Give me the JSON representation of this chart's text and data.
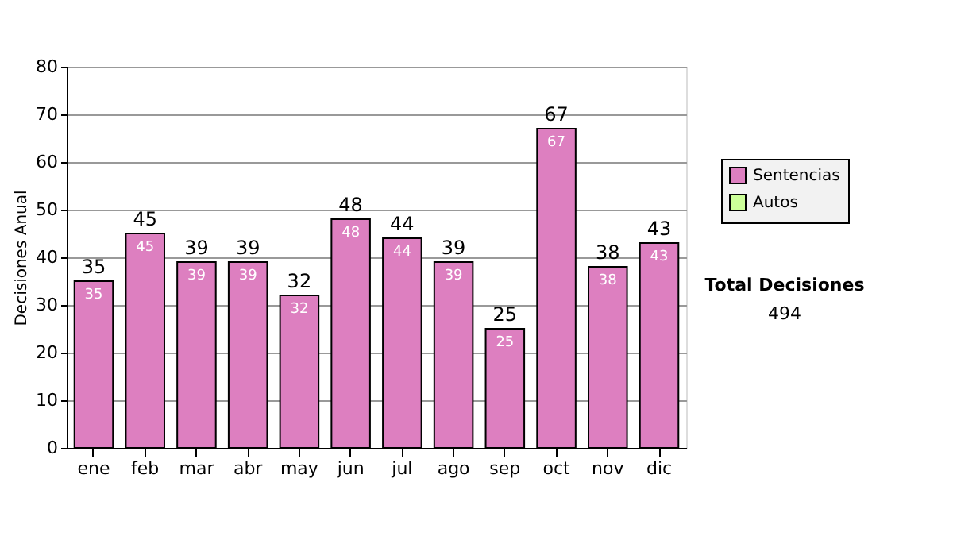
{
  "chart_data": {
    "type": "bar",
    "stacked": true,
    "ylabel": "Decisiones Anual",
    "categories": [
      "ene",
      "feb",
      "mar",
      "abr",
      "may",
      "jun",
      "jul",
      "ago",
      "sep",
      "oct",
      "nov",
      "dic"
    ],
    "series": [
      {
        "name": "Sentencias",
        "color": "#dd7fc0",
        "values": [
          35,
          45,
          39,
          39,
          32,
          48,
          44,
          39,
          25,
          67,
          38,
          43
        ],
        "value_labels": [
          "35",
          "45",
          "39",
          "39",
          "32",
          "48",
          "44",
          "39",
          "25",
          "67",
          "38",
          "43"
        ]
      },
      {
        "name": "Autos",
        "color": "#ccff99",
        "values": [
          0,
          0,
          0,
          0,
          0,
          0,
          0,
          0,
          0,
          0,
          0,
          0
        ]
      }
    ],
    "totals": [
      "35",
      "45",
      "39",
      "39",
      "32",
      "48",
      "44",
      "39",
      "25",
      "67",
      "38",
      "43"
    ],
    "ylim": [
      0,
      80
    ],
    "yticks": [
      0,
      10,
      20,
      30,
      40,
      50,
      60,
      70,
      80
    ],
    "grid": "y",
    "legend": "right",
    "annotations": [
      "Total Decisiones",
      "494"
    ]
  }
}
